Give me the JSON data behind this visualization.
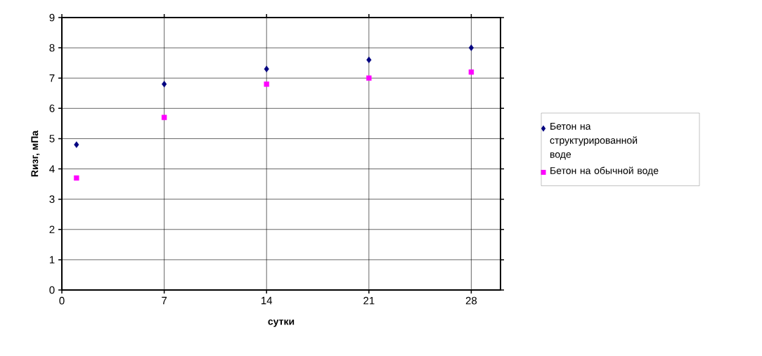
{
  "chart_data": {
    "type": "scatter",
    "xlabel": "сутки",
    "ylabel": "Rизг, мПа",
    "x": [
      1,
      7,
      14,
      21,
      28
    ],
    "series": [
      {
        "name": "Бетон на структурированной воде",
        "color": "#000080",
        "marker": "diamond",
        "values": [
          4.8,
          6.8,
          7.3,
          7.6,
          8.0
        ]
      },
      {
        "name": "Бетон на обычной воде",
        "color": "#ff00ff",
        "marker": "square",
        "values": [
          3.7,
          5.7,
          6.8,
          7.0,
          7.2
        ]
      }
    ],
    "xlim": [
      0,
      30
    ],
    "ylim": [
      0,
      9
    ],
    "xticks": [
      0,
      7,
      14,
      21,
      28
    ],
    "yticks": [
      0,
      1,
      2,
      3,
      4,
      5,
      6,
      7,
      8,
      9
    ],
    "grid": true,
    "legend": "right"
  }
}
